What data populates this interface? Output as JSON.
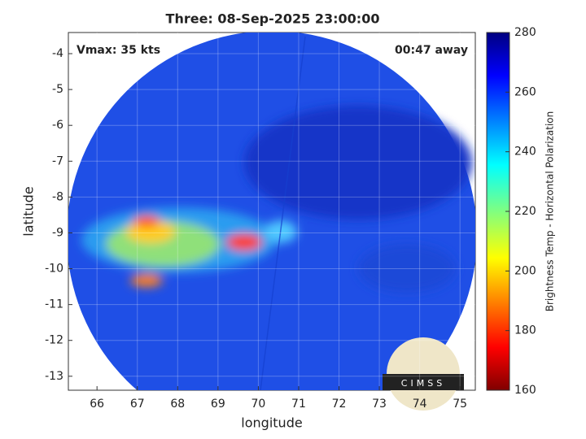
{
  "chart_data": {
    "type": "image",
    "title": "Three: 08-Sep-2025 23:00:00",
    "xlabel": "longitude",
    "ylabel": "latitude",
    "annotations": [
      "Vmax: 35 kts",
      "00:47 away"
    ],
    "logo": "CIMSS",
    "xlim": [
      65.29,
      75.38
    ],
    "xticks": [
      66,
      67,
      68,
      69,
      70,
      71,
      72,
      73,
      74,
      75
    ],
    "ylim": [
      -13.39,
      -3.41
    ],
    "yticks": [
      -13,
      -12,
      -11,
      -10,
      -9,
      -8,
      -7,
      -6,
      -5,
      -4
    ],
    "grid": true,
    "colorbar": {
      "label": "Brightness Temp - Horizontal Polarization",
      "clim": [
        160,
        280
      ],
      "ticks": [
        160,
        180,
        200,
        220,
        240,
        260,
        280
      ]
    }
  }
}
